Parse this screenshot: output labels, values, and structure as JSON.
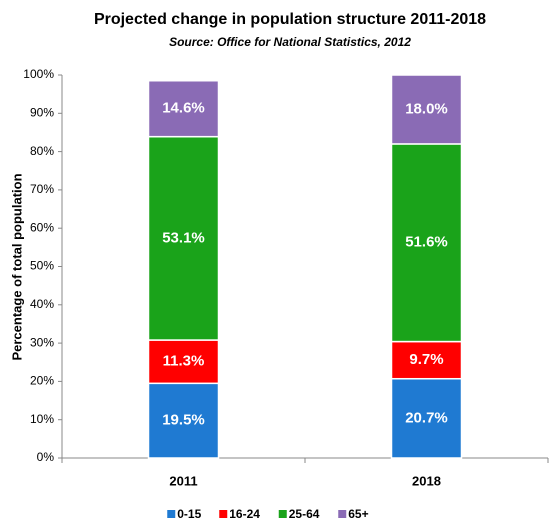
{
  "chart_data": {
    "type": "stacked_bar",
    "title": "Projected change in population structure 2011-2018",
    "subtitle": "Source: Office for National Statistics, 2012",
    "y_label": "Percentage of total population",
    "categories": [
      "2011",
      "2018"
    ],
    "series": [
      {
        "name": "0-15",
        "color": "#1f7ad2",
        "values": [
          19.5,
          20.7
        ],
        "value_labels": [
          "19.5%",
          "20.7%"
        ]
      },
      {
        "name": "16-24",
        "color": "#ff0000",
        "values": [
          11.3,
          9.7
        ],
        "value_labels": [
          "11.3%",
          "9.7%"
        ]
      },
      {
        "name": "25-64",
        "color": "#1aa31a",
        "values": [
          53.1,
          51.6
        ],
        "value_labels": [
          "53.1%",
          "51.6%"
        ]
      },
      {
        "name": "65+",
        "color": "#8a6bb5",
        "values": [
          14.6,
          18.0
        ],
        "value_labels": [
          "14.6%",
          "18.0%"
        ]
      }
    ],
    "ylim": [
      0,
      100
    ],
    "yticks": [
      {
        "value": 0,
        "label": "0%"
      },
      {
        "value": 10,
        "label": "10%"
      },
      {
        "value": 20,
        "label": "20%"
      },
      {
        "value": 30,
        "label": "30%"
      },
      {
        "value": 40,
        "label": "40%"
      },
      {
        "value": 50,
        "label": "50%"
      },
      {
        "value": 60,
        "label": "60%"
      },
      {
        "value": 70,
        "label": "70%"
      },
      {
        "value": 80,
        "label": "80%"
      },
      {
        "value": 90,
        "label": "90%"
      },
      {
        "value": 100,
        "label": "100%"
      }
    ],
    "grid": false,
    "legend": "bottom"
  }
}
